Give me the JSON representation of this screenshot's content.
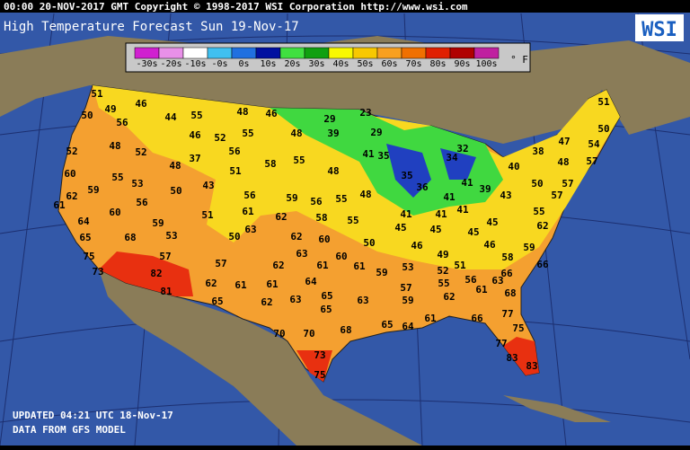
{
  "header": {
    "line": "00:00 20-NOV-2017 GMT Copyright © 1998-2017 WSI Corporation  http://www.wsi.com",
    "title": "High Temperature Forecast  Sun 19-Nov-17",
    "logo": "WSI"
  },
  "legend": {
    "items": [
      {
        "label": "-30s",
        "color": "#d020d0"
      },
      {
        "label": "-20s",
        "color": "#e890e8"
      },
      {
        "label": "-10s",
        "color": "#ffffff"
      },
      {
        "label": "-0s",
        "color": "#40c0f0"
      },
      {
        "label": "0s",
        "color": "#2070e0"
      },
      {
        "label": "10s",
        "color": "#0010a0"
      },
      {
        "label": "20s",
        "color": "#40e040"
      },
      {
        "label": "30s",
        "color": "#10a010"
      },
      {
        "label": "40s",
        "color": "#f8f800"
      },
      {
        "label": "50s",
        "color": "#f8c800"
      },
      {
        "label": "60s",
        "color": "#f8a020"
      },
      {
        "label": "70s",
        "color": "#f07000"
      },
      {
        "label": "80s",
        "color": "#e02000"
      },
      {
        "label": "90s",
        "color": "#b00000"
      },
      {
        "label": "100s",
        "color": "#c020a0"
      }
    ],
    "unit": "° F"
  },
  "temperatures": [
    51,
    50,
    49,
    46,
    56,
    44,
    55,
    48,
    46,
    29,
    23,
    52,
    48,
    52,
    46,
    52,
    55,
    48,
    39,
    29,
    32,
    38,
    47,
    54,
    51,
    50,
    57,
    48,
    37,
    48,
    56,
    58,
    55,
    48,
    41,
    35,
    35,
    34,
    60,
    59,
    55,
    53,
    50,
    43,
    51,
    56,
    59,
    56,
    55,
    48,
    36,
    41,
    41,
    39,
    40,
    43,
    50,
    57,
    57,
    62,
    61,
    56,
    64,
    60,
    59,
    51,
    61,
    62,
    58,
    55,
    41,
    41,
    41,
    45,
    55,
    62,
    65,
    68,
    53,
    50,
    63,
    62,
    60,
    50,
    45,
    45,
    45,
    46,
    46,
    59,
    75,
    57,
    57,
    62,
    63,
    61,
    60,
    61,
    59,
    53,
    49,
    51,
    52,
    58,
    66,
    73,
    82,
    62,
    61,
    61,
    64,
    55,
    56,
    66,
    63,
    57,
    81,
    65,
    62,
    63,
    65,
    63,
    59,
    62,
    61,
    68,
    65,
    61,
    66,
    77,
    70,
    70,
    68,
    65,
    64,
    75,
    73,
    77,
    83,
    83,
    75
  ],
  "footer": {
    "updated": "UPDATED 04:21 UTC 18-Nov-17",
    "source": "DATA FROM GFS MODEL"
  }
}
